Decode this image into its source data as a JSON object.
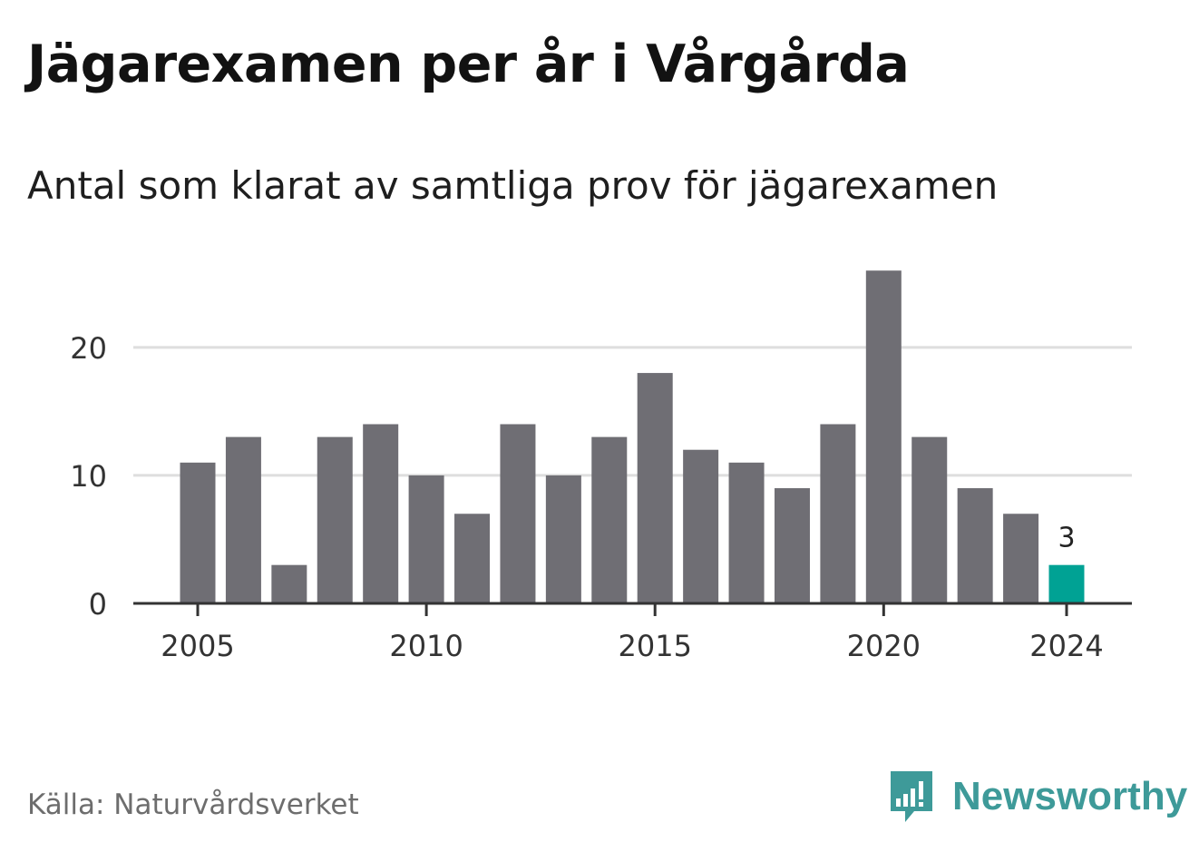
{
  "header": {
    "title": "Jägarexamen per år i Vårgårda",
    "subtitle": "Antal som klarat av samtliga prov för jägarexamen"
  },
  "footer": {
    "source": "Källa: Naturvårdsverket",
    "brand": "Newsworthy",
    "brand_icon": "bar-chart-speech-bubble-icon"
  },
  "colors": {
    "bar": "#6f6e74",
    "highlight": "#00a294",
    "grid": "#dedede",
    "axis": "#333333",
    "brand": "#3e9a99"
  },
  "chart_data": {
    "type": "bar",
    "title": "Jägarexamen per år i Vårgårda",
    "subtitle": "Antal som klarat av samtliga prov för jägarexamen",
    "x": [
      2005,
      2006,
      2007,
      2008,
      2009,
      2010,
      2011,
      2012,
      2013,
      2014,
      2015,
      2016,
      2017,
      2018,
      2019,
      2020,
      2021,
      2022,
      2023,
      2024
    ],
    "values": [
      11,
      13,
      3,
      13,
      14,
      10,
      7,
      14,
      10,
      13,
      18,
      12,
      11,
      9,
      14,
      26,
      13,
      9,
      7,
      3
    ],
    "x_ticks": [
      2005,
      2010,
      2015,
      2020,
      2024
    ],
    "y_ticks": [
      0,
      10,
      20
    ],
    "ylim": [
      0,
      28
    ],
    "highlight_year": 2024,
    "highlight_label": "3",
    "grid": true,
    "xlabel": "",
    "ylabel": ""
  }
}
